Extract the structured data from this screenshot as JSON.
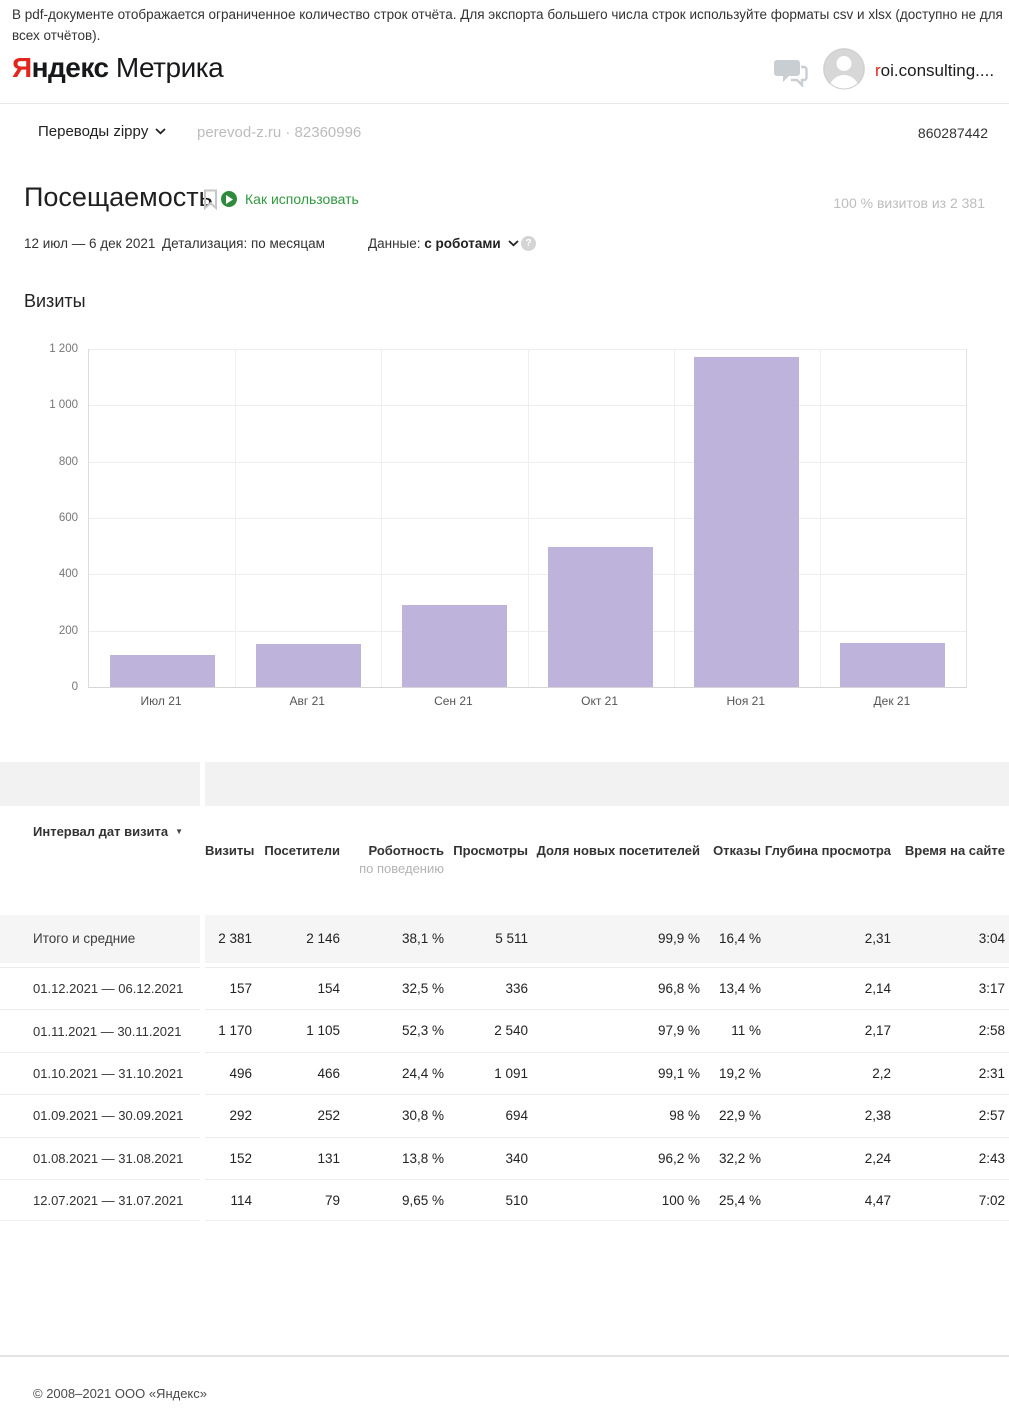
{
  "notice": "В pdf-документе отображается ограниченное количество строк отчёта. Для экспорта большего числа строк используйте форматы csv и xlsx (доступно не для всех отчётов).",
  "header": {
    "logo_red": "Я",
    "logo_black": "ндекс",
    "logo_product": "Метрика",
    "user_red": "r",
    "user_rest": "oi.consulting...."
  },
  "counter_bar": {
    "name": "Переводы zippy",
    "domain_id": "perevod-z.ru · 82360996",
    "counter_number": "860287442"
  },
  "report": {
    "title": "Посещаемость",
    "howto_label": "Как использовать",
    "visits_share": "100 % визитов из 2 381",
    "date_range": "12 июл — 6 дек 2021",
    "detail": "Детализация: по месяцам",
    "data_prefix": "Данные:",
    "data_value": "с роботами"
  },
  "chart_data": {
    "type": "bar",
    "title": "Визиты",
    "categories": [
      "Июл 21",
      "Авг 21",
      "Сен 21",
      "Окт 21",
      "Ноя 21",
      "Дек 21"
    ],
    "values": [
      114,
      152,
      292,
      496,
      1170,
      157
    ],
    "ylim": [
      0,
      1200
    ],
    "y_ticks": [
      {
        "label": "1 200",
        "value": 1200
      },
      {
        "label": "1 000",
        "value": 1000
      },
      {
        "label": "800",
        "value": 800
      },
      {
        "label": "600",
        "value": 600
      },
      {
        "label": "400",
        "value": 400
      },
      {
        "label": "200",
        "value": 200
      },
      {
        "label": "0",
        "value": 0
      }
    ],
    "grid": true,
    "legend": "none",
    "bar_color": "#beb3da"
  },
  "table": {
    "sort_column": "Интервал дат визита",
    "columns": [
      "Визиты",
      "Посетители",
      "Роботность",
      "Просмотры",
      "Доля новых посетителей",
      "Отказы",
      "Глубина просмотра",
      "Время на сайте"
    ],
    "robotness_sub": "по поведению",
    "totals": {
      "label": "Итого и средние",
      "values": [
        "2 381",
        "2 146",
        "38,1 %",
        "5 511",
        "99,9 %",
        "16,4 %",
        "2,31",
        "3:04"
      ]
    },
    "rows": [
      {
        "label": "01.12.2021 — 06.12.2021",
        "values": [
          "157",
          "154",
          "32,5 %",
          "336",
          "96,8 %",
          "13,4 %",
          "2,14",
          "3:17"
        ]
      },
      {
        "label": "01.11.2021 — 30.11.2021",
        "values": [
          "1 170",
          "1 105",
          "52,3 %",
          "2 540",
          "97,9 %",
          "11 %",
          "2,17",
          "2:58"
        ]
      },
      {
        "label": "01.10.2021 — 31.10.2021",
        "values": [
          "496",
          "466",
          "24,4 %",
          "1 091",
          "99,1 %",
          "19,2 %",
          "2,2",
          "2:31"
        ]
      },
      {
        "label": "01.09.2021 — 30.09.2021",
        "values": [
          "292",
          "252",
          "30,8 %",
          "694",
          "98 %",
          "22,9 %",
          "2,38",
          "2:57"
        ]
      },
      {
        "label": "01.08.2021 — 31.08.2021",
        "values": [
          "152",
          "131",
          "13,8 %",
          "340",
          "96,2 %",
          "32,2 %",
          "2,24",
          "2:43"
        ]
      },
      {
        "label": "12.07.2021 — 31.07.2021",
        "values": [
          "114",
          "79",
          "9,65 %",
          "510",
          "100 %",
          "25,4 %",
          "4,47",
          "7:02"
        ]
      }
    ]
  },
  "footer": {
    "copyright": "© 2008–2021 ООО «Яндекс»"
  },
  "colors": {
    "brand_red": "#e3261d",
    "link_green": "#2f9940",
    "bar_fill": "#beb3da"
  }
}
